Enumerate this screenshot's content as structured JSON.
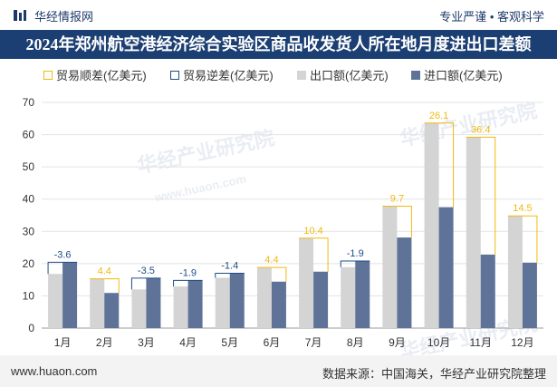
{
  "header": {
    "logo_text": "华经情报网",
    "slogan": "专业严谨 • 客观科学",
    "title": "2024年郑州航空港经济综合实验区商品收发货人所在地月度进出口差额"
  },
  "watermarks": [
    "华经产业研究院",
    "www.huaon.com",
    "华经产业研究院",
    "华经产业研究院"
  ],
  "footer": {
    "url": "www.huaon.com",
    "source": "数据来源：中国海关，华经产业研究院整理"
  },
  "colors": {
    "export": "#d4d4d4",
    "import": "#5f7399",
    "surplus": "#f2b90f",
    "deficit": "#1e4d86",
    "title_bg": "#1c3f73"
  },
  "chart_data": {
    "type": "bar",
    "title": "2024年郑州航空港经济综合实验区商品收发货人所在地月度进出口差额",
    "categories": [
      "1月",
      "2月",
      "3月",
      "4月",
      "5月",
      "6月",
      "7月",
      "8月",
      "9月",
      "10月",
      "11月",
      "12月"
    ],
    "series": [
      {
        "name": "出口额(亿美元)",
        "values": [
          16.8,
          15.3,
          12.0,
          12.9,
          15.6,
          18.8,
          27.9,
          18.9,
          37.8,
          63.6,
          59.2,
          34.8
        ]
      },
      {
        "name": "进口额(亿美元)",
        "values": [
          20.4,
          10.9,
          15.5,
          14.8,
          17.0,
          14.4,
          17.5,
          20.8,
          28.1,
          37.5,
          22.8,
          20.3
        ]
      }
    ],
    "balance": {
      "name_surplus": "贸易顺差(亿美元)",
      "name_deficit": "贸易逆差(亿美元)",
      "values": [
        -3.6,
        4.4,
        -3.5,
        -1.9,
        -1.4,
        4.4,
        10.4,
        -1.9,
        9.7,
        26.1,
        36.4,
        14.5
      ],
      "labels": [
        "-3.6",
        "4.4",
        "-3.5",
        "-1.9",
        "-1.4",
        "4.4",
        "10.4",
        "-1.9",
        "9.7",
        "26.1",
        "36.4",
        "14.5"
      ]
    },
    "ylim": [
      0,
      70
    ],
    "yticks": [
      0,
      10,
      20,
      30,
      40,
      50,
      60,
      70
    ],
    "legend_position": "top"
  }
}
